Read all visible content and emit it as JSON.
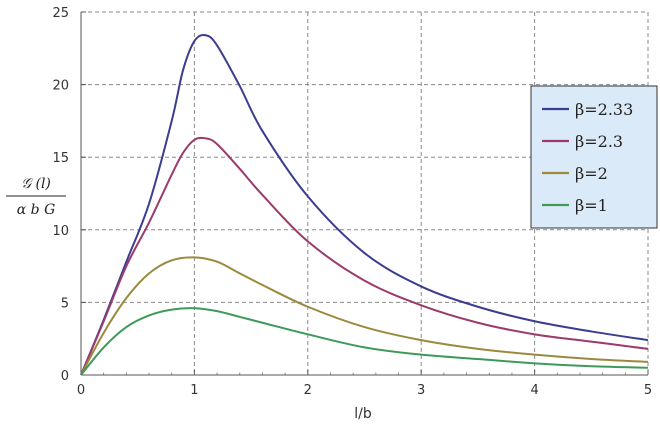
{
  "chart_data": {
    "type": "line",
    "xlabel": "l/b",
    "ylabel": {
      "numerator": "𝒢 (l)",
      "denominator": "α b G"
    },
    "xlim": [
      0,
      5
    ],
    "ylim": [
      0,
      25
    ],
    "x_ticks": [
      "0",
      "1",
      "2",
      "3",
      "4",
      "5"
    ],
    "y_ticks": [
      "0",
      "5",
      "10",
      "15",
      "20",
      "25"
    ],
    "grid": true,
    "legend_position": "right",
    "series": [
      {
        "name": "β=2.33",
        "color": "#3b3d8f",
        "x": [
          0,
          0.2,
          0.4,
          0.6,
          0.8,
          0.9,
          1.0,
          1.1,
          1.2,
          1.4,
          1.6,
          2.0,
          2.5,
          3.0,
          3.5,
          4.0,
          4.5,
          5.0
        ],
        "y": [
          0,
          3.8,
          7.8,
          11.8,
          17.5,
          21.0,
          23.0,
          23.4,
          22.7,
          19.9,
          16.8,
          12.3,
          8.4,
          6.1,
          4.7,
          3.7,
          3.0,
          2.4
        ]
      },
      {
        "name": "β=2.3",
        "color": "#9b3a6b",
        "x": [
          0,
          0.2,
          0.4,
          0.6,
          0.8,
          0.9,
          1.0,
          1.1,
          1.2,
          1.4,
          1.6,
          2.0,
          2.5,
          3.0,
          3.5,
          4.0,
          4.5,
          5.0
        ],
        "y": [
          0,
          3.7,
          7.5,
          10.5,
          13.8,
          15.3,
          16.2,
          16.3,
          15.9,
          14.2,
          12.4,
          9.2,
          6.5,
          4.8,
          3.6,
          2.8,
          2.3,
          1.8
        ]
      },
      {
        "name": "β=2",
        "color": "#9b8a3e",
        "x": [
          0,
          0.2,
          0.4,
          0.6,
          0.8,
          1.0,
          1.2,
          1.4,
          1.6,
          2.0,
          2.5,
          3.0,
          3.5,
          4.0,
          4.5,
          5.0
        ],
        "y": [
          0,
          2.9,
          5.3,
          7.0,
          7.9,
          8.1,
          7.8,
          7.0,
          6.2,
          4.7,
          3.3,
          2.4,
          1.8,
          1.4,
          1.1,
          0.9
        ]
      },
      {
        "name": "β=1",
        "color": "#3f9a5a",
        "x": [
          0,
          0.2,
          0.4,
          0.6,
          0.8,
          1.0,
          1.2,
          1.4,
          1.6,
          2.0,
          2.5,
          3.0,
          3.5,
          4.0,
          4.5,
          5.0
        ],
        "y": [
          0,
          1.9,
          3.3,
          4.1,
          4.5,
          4.6,
          4.4,
          4.0,
          3.6,
          2.8,
          1.9,
          1.4,
          1.1,
          0.8,
          0.6,
          0.5
        ]
      }
    ]
  }
}
